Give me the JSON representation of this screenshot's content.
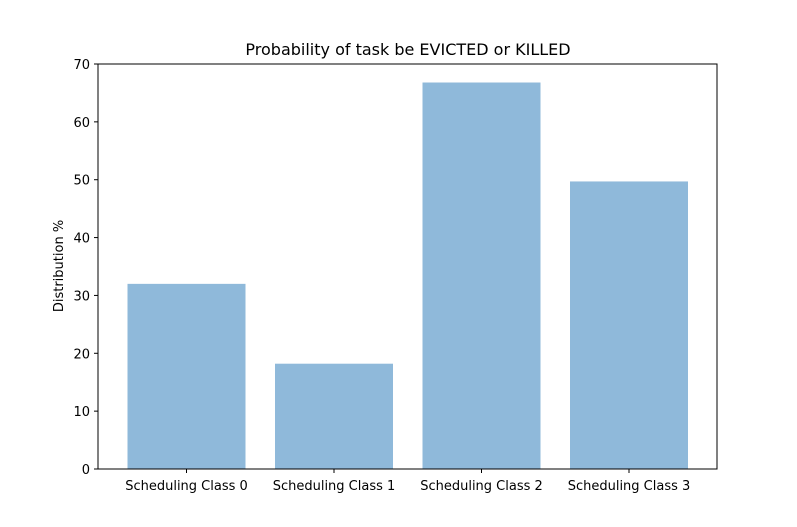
{
  "chart_data": {
    "type": "bar",
    "title": "Probability of task be EVICTED or KILLED",
    "xlabel": "",
    "ylabel": "Distribution %",
    "categories": [
      "Scheduling Class 0",
      "Scheduling Class 1",
      "Scheduling Class 2",
      "Scheduling Class 3"
    ],
    "values": [
      32.0,
      18.2,
      66.8,
      49.7
    ],
    "ylim": [
      0,
      70
    ],
    "yticks": [
      0,
      10,
      20,
      30,
      40,
      50,
      60,
      70
    ],
    "bar_color": "#8fb9da",
    "grid": false,
    "legend": "none"
  }
}
